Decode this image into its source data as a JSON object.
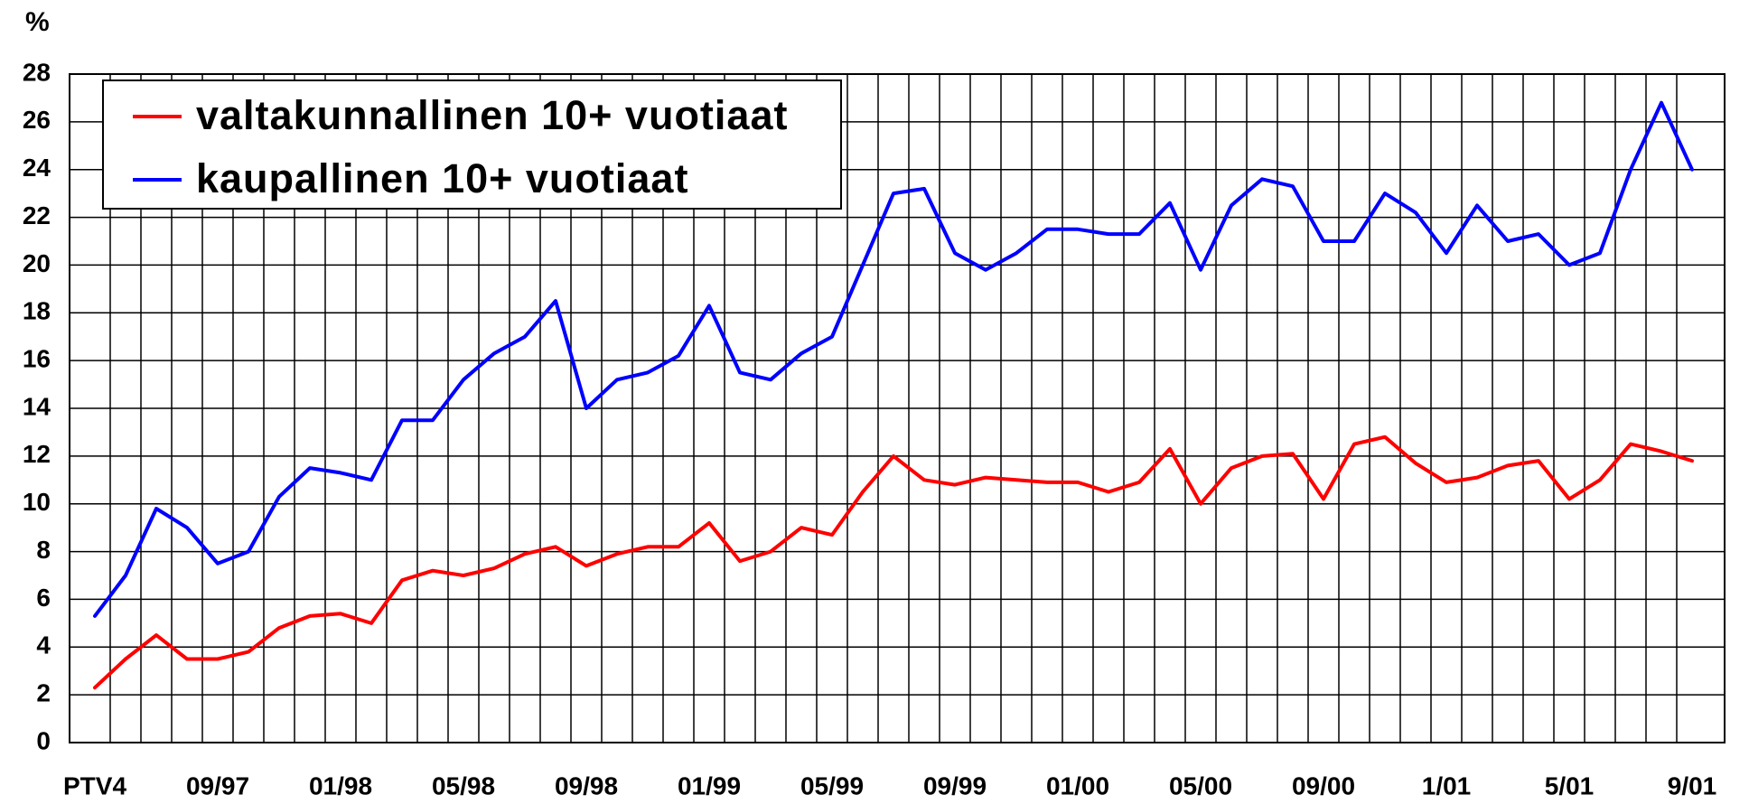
{
  "chart_data": {
    "type": "line",
    "y_label": "%",
    "categories": [
      "PTV4",
      null,
      null,
      null,
      "09/97",
      null,
      null,
      null,
      "01/98",
      null,
      null,
      null,
      "05/98",
      null,
      null,
      null,
      "09/98",
      null,
      null,
      null,
      "01/99",
      null,
      null,
      null,
      "05/99",
      null,
      null,
      null,
      "09/99",
      null,
      null,
      null,
      "01/00",
      null,
      null,
      null,
      "05/00",
      null,
      null,
      null,
      "09/00",
      null,
      null,
      null,
      "1/01",
      null,
      null,
      null,
      "5/01",
      null,
      null,
      null,
      "9/01"
    ],
    "series": [
      {
        "name": "valtakunnallinen 10+ vuotiaat",
        "color": "#ff0000",
        "values": [
          2.3,
          3.5,
          4.5,
          3.5,
          3.5,
          3.8,
          4.8,
          5.3,
          5.4,
          5.0,
          6.8,
          7.2,
          7.0,
          7.3,
          7.9,
          8.2,
          7.4,
          7.9,
          8.2,
          8.2,
          9.2,
          7.6,
          8.0,
          9.0,
          8.7,
          10.5,
          12.0,
          11.0,
          10.8,
          11.1,
          11.0,
          10.9,
          10.9,
          10.5,
          10.9,
          12.3,
          10.0,
          11.5,
          12.0,
          12.1,
          10.2,
          12.5,
          12.8,
          11.7,
          10.9,
          11.1,
          11.6,
          11.8,
          10.2,
          11.0,
          12.5,
          12.2,
          11.8
        ]
      },
      {
        "name": "kaupallinen 10+ vuotiaat",
        "color": "#0000ff",
        "values": [
          5.3,
          7.0,
          9.8,
          9.0,
          7.5,
          8.0,
          10.3,
          11.5,
          11.3,
          11.0,
          13.5,
          13.5,
          15.2,
          16.3,
          17.0,
          18.5,
          14.0,
          15.2,
          15.5,
          16.2,
          18.3,
          15.5,
          15.2,
          16.3,
          17.0,
          20.0,
          23.0,
          23.2,
          20.5,
          19.8,
          20.5,
          21.5,
          21.5,
          21.3,
          21.3,
          22.6,
          19.8,
          22.5,
          23.6,
          23.3,
          21.0,
          21.0,
          23.0,
          22.2,
          20.5,
          22.5,
          21.0,
          21.3,
          20.0,
          20.5,
          24.0,
          26.8,
          24.0
        ]
      }
    ],
    "ylim": [
      0,
      28
    ],
    "yticks": [
      0,
      2,
      4,
      6,
      8,
      10,
      12,
      14,
      16,
      18,
      20,
      22,
      24,
      26,
      28
    ],
    "grid": true,
    "legend": "top-left"
  }
}
